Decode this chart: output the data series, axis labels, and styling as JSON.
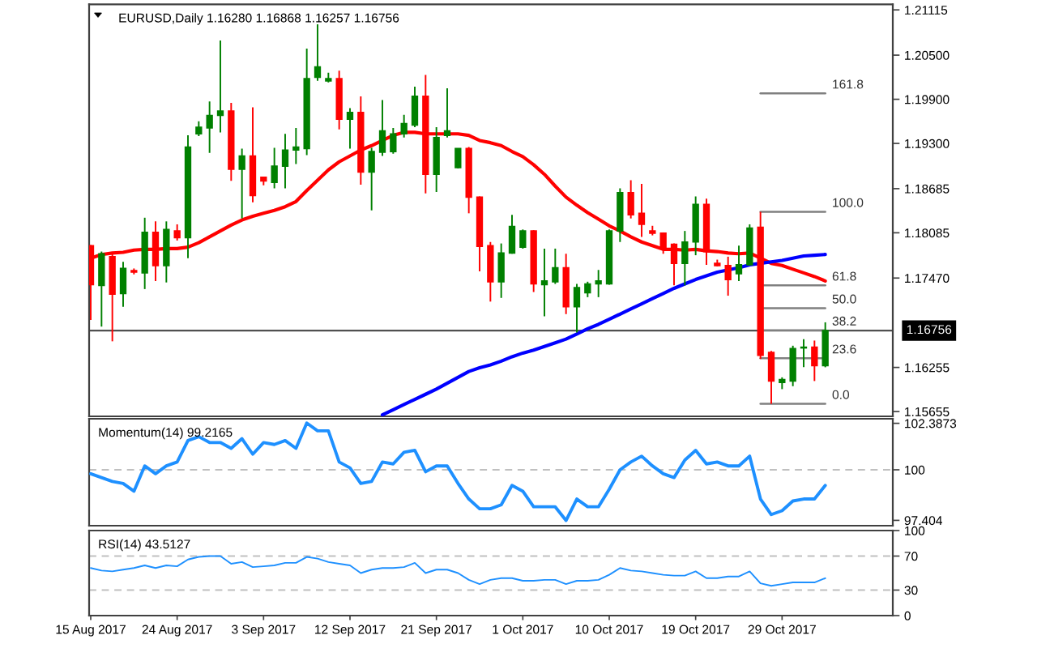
{
  "chart_data": [
    {
      "type": "candlestick",
      "title": "EURUSD,Daily 1.16280 1.16868 1.16257 1.16756",
      "categories": [
        null,
        null,
        null,
        null,
        null,
        null,
        null,
        null,
        null,
        null,
        null,
        null,
        null,
        null,
        null,
        null,
        null,
        null,
        null,
        null,
        null,
        null,
        null,
        null,
        null,
        null,
        null,
        null,
        null,
        null,
        null,
        null,
        null,
        null,
        null,
        null,
        null,
        null,
        null,
        null,
        null,
        null,
        null,
        null,
        null,
        null,
        null,
        null,
        null,
        null,
        null,
        null,
        null,
        null,
        null,
        null,
        null,
        null,
        null,
        null,
        null,
        null,
        null,
        null,
        null,
        null,
        null,
        null,
        null
      ],
      "ohlc": [
        [
          1.1791,
          1.1792,
          1.169,
          1.1738
        ],
        [
          1.1737,
          1.1783,
          1.1681,
          1.178
        ],
        [
          1.1776,
          1.178,
          1.1661,
          1.1725
        ],
        [
          1.1726,
          1.1769,
          1.1708,
          1.176
        ],
        [
          1.1757,
          1.176,
          1.1752,
          1.1755
        ],
        [
          1.1754,
          1.1829,
          1.1732,
          1.1809
        ],
        [
          1.1809,
          1.1824,
          1.1743,
          1.1764
        ],
        [
          1.1764,
          1.1824,
          1.1741,
          1.1813
        ],
        [
          1.1811,
          1.182,
          1.1798,
          1.1802
        ],
        [
          1.1802,
          1.1941,
          1.1774,
          1.1925
        ],
        [
          1.1943,
          1.196,
          1.194,
          1.1952
        ],
        [
          1.1951,
          1.1987,
          1.1917,
          1.1968
        ],
        [
          1.1968,
          1.207,
          1.1945,
          1.1974
        ],
        [
          1.1974,
          1.1985,
          1.1879,
          1.1895
        ],
        [
          1.1895,
          1.1923,
          1.1828,
          1.1913
        ],
        [
          1.1913,
          1.1979,
          1.185,
          1.1859
        ],
        [
          1.1884,
          1.1885,
          1.1873,
          1.1879
        ],
        [
          1.1877,
          1.1924,
          1.1869,
          1.1899
        ],
        [
          1.1899,
          1.1943,
          1.1869,
          1.1921
        ],
        [
          1.1921,
          1.1951,
          1.1902,
          1.1925
        ],
        [
          1.1923,
          1.2059,
          1.1914,
          1.2018
        ],
        [
          1.202,
          1.2092,
          1.2015,
          1.2034
        ],
        [
          1.2015,
          1.2026,
          1.2013,
          1.2018
        ],
        [
          1.2018,
          1.2029,
          1.1949,
          1.1963
        ],
        [
          1.1963,
          1.1978,
          1.1923,
          1.1972
        ],
        [
          1.1972,
          1.1994,
          1.1874,
          1.1891
        ],
        [
          1.1891,
          1.1924,
          1.1839,
          1.1919
        ],
        [
          1.1918,
          1.1989,
          1.1913,
          1.1947
        ],
        [
          1.1919,
          1.1951,
          1.1916,
          1.1943
        ],
        [
          1.1943,
          1.1969,
          1.1938,
          1.1957
        ],
        [
          1.1955,
          1.2007,
          1.1952,
          1.1994
        ],
        [
          1.1994,
          1.2023,
          1.1862,
          1.1888
        ],
        [
          1.1888,
          1.1952,
          1.1864,
          1.1938
        ],
        [
          1.1941,
          1.2005,
          1.1938,
          1.1947
        ],
        [
          1.1897,
          1.1923,
          1.1896,
          1.1923
        ],
        [
          1.1923,
          1.1925,
          1.1835,
          1.1857
        ],
        [
          1.1857,
          1.1858,
          1.1756,
          1.179
        ],
        [
          1.1791,
          1.1796,
          1.1715,
          1.1742
        ],
        [
          1.1742,
          1.1794,
          1.172,
          1.1781
        ],
        [
          1.1781,
          1.1833,
          1.178,
          1.1817
        ],
        [
          1.1789,
          1.1813,
          1.1787,
          1.1811
        ],
        [
          1.1811,
          1.1812,
          1.1728,
          1.1739
        ],
        [
          1.1738,
          1.1787,
          1.1695,
          1.1743
        ],
        [
          1.1742,
          1.1787,
          1.1739,
          1.1761
        ],
        [
          1.1761,
          1.178,
          1.1698,
          1.1708
        ],
        [
          1.1708,
          1.1739,
          1.1673,
          1.1734
        ],
        [
          1.1727,
          1.1742,
          1.1721,
          1.1739
        ],
        [
          1.1739,
          1.1758,
          1.1721,
          1.1743
        ],
        [
          1.1739,
          1.1813,
          1.1738,
          1.1811
        ],
        [
          1.1811,
          1.1869,
          1.1796,
          1.1863
        ],
        [
          1.1863,
          1.188,
          1.1828,
          1.1833
        ],
        [
          1.1835,
          1.1875,
          1.1803,
          1.182
        ],
        [
          1.1811,
          1.1818,
          1.1805,
          1.1808
        ],
        [
          1.1808,
          1.1809,
          1.178,
          1.1789
        ],
        [
          1.1793,
          1.1794,
          1.1737,
          1.1767
        ],
        [
          1.1767,
          1.1811,
          1.1737,
          1.1796
        ],
        [
          1.1796,
          1.1858,
          1.1778,
          1.1847
        ],
        [
          1.1847,
          1.1855,
          1.1765,
          1.1783
        ],
        [
          1.1767,
          1.1772,
          1.1763,
          1.1764
        ],
        [
          1.1764,
          1.1776,
          1.1723,
          1.1745
        ],
        [
          1.1753,
          1.1791,
          1.1743,
          1.1765
        ],
        [
          1.1765,
          1.182,
          1.1764,
          1.1815
        ],
        [
          1.1816,
          1.1837,
          1.1637,
          1.1642
        ],
        [
          1.1646,
          1.1648,
          1.1576,
          1.1607
        ],
        [
          1.1605,
          1.1612,
          1.1596,
          1.1609
        ],
        [
          1.1607,
          1.1655,
          1.16,
          1.1651
        ],
        [
          1.1652,
          1.1664,
          1.1626,
          1.1653
        ],
        [
          1.1653,
          1.1662,
          1.1607,
          1.1628
        ],
        [
          1.1628,
          1.16868,
          1.16257,
          1.16756
        ]
      ],
      "colors": [
        "#ff0000",
        "#008000",
        "#ff0000",
        "#008000",
        "#ff0000",
        "#008000",
        "#ff0000",
        "#008000",
        "#ff0000",
        "#008000",
        "#008000",
        "#008000",
        "#008000",
        "#ff0000",
        "#008000",
        "#ff0000",
        "#ff0000",
        "#008000",
        "#008000",
        "#008000",
        "#008000",
        "#008000",
        "#008000",
        "#ff0000",
        "#008000",
        "#ff0000",
        "#008000",
        "#008000",
        "#008000",
        "#008000",
        "#008000",
        "#ff0000",
        "#008000",
        "#008000",
        "#008000",
        "#ff0000",
        "#ff0000",
        "#ff0000",
        "#008000",
        "#008000",
        "#008000",
        "#ff0000",
        "#008000",
        "#008000",
        "#ff0000",
        "#008000",
        "#008000",
        "#008000",
        "#008000",
        "#008000",
        "#ff0000",
        "#ff0000",
        "#ff0000",
        "#ff0000",
        "#ff0000",
        "#008000",
        "#008000",
        "#ff0000",
        "#ff0000",
        "#ff0000",
        "#008000",
        "#008000",
        "#ff0000",
        "#ff0000",
        "#008000",
        "#008000",
        "#008000",
        "#ff0000",
        "#008000"
      ],
      "series": [
        {
          "type": "line",
          "color": "#ff0000",
          "values": [
            1.1774,
            1.1779,
            1.1781,
            1.1782,
            1.1785,
            1.1786,
            1.1786,
            1.1787,
            1.1787,
            1.1789,
            1.1795,
            1.1803,
            1.1811,
            1.1819,
            1.1826,
            1.1831,
            1.1835,
            1.1839,
            1.1844,
            1.1851,
            1.1866,
            1.188,
            1.1894,
            1.1905,
            1.1913,
            1.1921,
            1.1927,
            1.1934,
            1.1941,
            1.1945,
            1.1945,
            1.1943,
            1.1943,
            1.1943,
            1.1943,
            1.1941,
            1.1934,
            1.1931,
            1.1927,
            1.1919,
            1.1912,
            1.1901,
            1.1888,
            1.1872,
            1.1857,
            1.1846,
            1.1836,
            1.1827,
            1.1818,
            1.1811,
            1.1803,
            1.1796,
            1.1791,
            1.1786,
            1.1786,
            1.1785,
            1.1786,
            1.1784,
            1.1783,
            1.1781,
            1.178,
            1.1781,
            1.1774,
            1.1767,
            1.1764,
            1.1759,
            1.1754,
            1.1749,
            1.1743
          ]
        },
        {
          "type": "line",
          "color": "#0000ff",
          "values": [
            null,
            null,
            null,
            null,
            null,
            null,
            null,
            null,
            null,
            null,
            null,
            null,
            null,
            null,
            null,
            null,
            null,
            null,
            null,
            null,
            null,
            null,
            null,
            null,
            null,
            null,
            null,
            1.1561,
            1.1568,
            1.1575,
            1.1582,
            1.1589,
            1.1596,
            1.1604,
            1.1612,
            1.162,
            1.1625,
            1.1629,
            1.1634,
            1.164,
            1.1645,
            1.1649,
            1.1654,
            1.1659,
            1.1664,
            1.1671,
            1.1678,
            1.1684,
            1.1691,
            1.1698,
            1.1705,
            1.1712,
            1.1719,
            1.1726,
            1.1733,
            1.1739,
            1.1745,
            1.175,
            1.1755,
            1.1758,
            1.1761,
            1.1765,
            1.1767,
            1.1769,
            1.1771,
            1.1774,
            1.1777,
            1.1778,
            1.1779
          ]
        },
        {
          "type": "line",
          "name": "161.8",
          "color": "#808080",
          "values": [
            null,
            null,
            null,
            null,
            null,
            null,
            null,
            null,
            null,
            null,
            null,
            null,
            null,
            null,
            null,
            null,
            null,
            null,
            null,
            null,
            null,
            null,
            null,
            null,
            null,
            null,
            null,
            null,
            null,
            null,
            null,
            null,
            null,
            null,
            null,
            null,
            null,
            null,
            null,
            null,
            null,
            null,
            null,
            null,
            null,
            null,
            null,
            null,
            null,
            null,
            null,
            null,
            null,
            null,
            null,
            null,
            null,
            null,
            null,
            null,
            null,
            null,
            1.1998,
            1.1998,
            1.1998,
            1.1998,
            1.1998,
            1.1998,
            1.1998
          ]
        },
        {
          "type": "line",
          "name": "100.0",
          "color": "#808080",
          "values": [
            null,
            null,
            null,
            null,
            null,
            null,
            null,
            null,
            null,
            null,
            null,
            null,
            null,
            null,
            null,
            null,
            null,
            null,
            null,
            null,
            null,
            null,
            null,
            null,
            null,
            null,
            null,
            null,
            null,
            null,
            null,
            null,
            null,
            null,
            null,
            null,
            null,
            null,
            null,
            null,
            null,
            null,
            null,
            null,
            null,
            null,
            null,
            null,
            null,
            null,
            null,
            null,
            null,
            null,
            null,
            null,
            null,
            null,
            null,
            null,
            null,
            null,
            1.1837,
            1.1837,
            1.1837,
            1.1837,
            1.1837,
            1.1837,
            1.1837
          ]
        },
        {
          "type": "line",
          "name": "61.8",
          "color": "#808080",
          "values": [
            null,
            null,
            null,
            null,
            null,
            null,
            null,
            null,
            null,
            null,
            null,
            null,
            null,
            null,
            null,
            null,
            null,
            null,
            null,
            null,
            null,
            null,
            null,
            null,
            null,
            null,
            null,
            null,
            null,
            null,
            null,
            null,
            null,
            null,
            null,
            null,
            null,
            null,
            null,
            null,
            null,
            null,
            null,
            null,
            null,
            null,
            null,
            null,
            null,
            null,
            null,
            null,
            null,
            null,
            null,
            null,
            null,
            null,
            null,
            null,
            null,
            null,
            1.1737,
            1.1737,
            1.1737,
            1.1737,
            1.1737,
            1.1737,
            1.1737
          ]
        },
        {
          "type": "line",
          "name": "50.0",
          "color": "#808080",
          "values": [
            null,
            null,
            null,
            null,
            null,
            null,
            null,
            null,
            null,
            null,
            null,
            null,
            null,
            null,
            null,
            null,
            null,
            null,
            null,
            null,
            null,
            null,
            null,
            null,
            null,
            null,
            null,
            null,
            null,
            null,
            null,
            null,
            null,
            null,
            null,
            null,
            null,
            null,
            null,
            null,
            null,
            null,
            null,
            null,
            null,
            null,
            null,
            null,
            null,
            null,
            null,
            null,
            null,
            null,
            null,
            null,
            null,
            null,
            null,
            null,
            null,
            null,
            1.1706,
            1.1706,
            1.1706,
            1.1706,
            1.1706,
            1.1706,
            1.1706
          ]
        },
        {
          "type": "line",
          "name": "38.2",
          "color": "#808080",
          "values": [
            null,
            null,
            null,
            null,
            null,
            null,
            null,
            null,
            null,
            null,
            null,
            null,
            null,
            null,
            null,
            null,
            null,
            null,
            null,
            null,
            null,
            null,
            null,
            null,
            null,
            null,
            null,
            null,
            null,
            null,
            null,
            null,
            null,
            null,
            null,
            null,
            null,
            null,
            null,
            null,
            null,
            null,
            null,
            null,
            null,
            null,
            null,
            null,
            null,
            null,
            null,
            null,
            null,
            null,
            null,
            null,
            null,
            null,
            null,
            null,
            null,
            null,
            1.1676,
            1.1676,
            1.1676,
            1.1676,
            1.1676,
            1.1676,
            1.1676
          ]
        },
        {
          "type": "line",
          "name": "23.6",
          "color": "#808080",
          "values": [
            null,
            null,
            null,
            null,
            null,
            null,
            null,
            null,
            null,
            null,
            null,
            null,
            null,
            null,
            null,
            null,
            null,
            null,
            null,
            null,
            null,
            null,
            null,
            null,
            null,
            null,
            null,
            null,
            null,
            null,
            null,
            null,
            null,
            null,
            null,
            null,
            null,
            null,
            null,
            null,
            null,
            null,
            null,
            null,
            null,
            null,
            null,
            null,
            null,
            null,
            null,
            null,
            null,
            null,
            null,
            null,
            null,
            null,
            null,
            null,
            null,
            null,
            1.1638,
            1.1638,
            1.1638,
            1.1638,
            1.1638,
            1.1638,
            1.1638
          ]
        },
        {
          "type": "line",
          "name": "0.0",
          "color": "#808080",
          "values": [
            null,
            null,
            null,
            null,
            null,
            null,
            null,
            null,
            null,
            null,
            null,
            null,
            null,
            null,
            null,
            null,
            null,
            null,
            null,
            null,
            null,
            null,
            null,
            null,
            null,
            null,
            null,
            null,
            null,
            null,
            null,
            null,
            null,
            null,
            null,
            null,
            null,
            null,
            null,
            null,
            null,
            null,
            null,
            null,
            null,
            null,
            null,
            null,
            null,
            null,
            null,
            null,
            null,
            null,
            null,
            null,
            null,
            null,
            null,
            null,
            null,
            null,
            1.1576,
            1.1576,
            1.1576,
            1.1576,
            1.1576,
            1.1576,
            1.1576
          ]
        }
      ],
      "ylim": [
        1.1559,
        1.2119
      ],
      "yticks": [
        1.21115,
        {
          "value": 1.205,
          "label": "1.20500"
        },
        {
          "value": 1.199,
          "label": "1.19900"
        },
        {
          "value": 1.193,
          "label": "1.19300"
        },
        1.18685,
        1.18085,
        {
          "value": 1.1747,
          "label": "1.17470"
        },
        1.16255,
        1.15655
      ],
      "ref_lines": [
        {
          "axis": "y",
          "value": 1.16756,
          "label": "1.16756",
          "color": "#505050"
        }
      ],
      "tick_labels": "y"
    },
    {
      "type": "line",
      "title": "Momentum(14) 99.2165",
      "categories": [
        null,
        null,
        null,
        null,
        null,
        null,
        null,
        null,
        null,
        null,
        null,
        null,
        null,
        null,
        null,
        null,
        null,
        null,
        null,
        null,
        null,
        null,
        null,
        null,
        null,
        null,
        null,
        null,
        null,
        null,
        null,
        null,
        null,
        null,
        null,
        null,
        null,
        null,
        null,
        null,
        null,
        null,
        null,
        null,
        null,
        null,
        null,
        null,
        null,
        null,
        null,
        null,
        null,
        null,
        null,
        null,
        null,
        null,
        null,
        null,
        null,
        null,
        null,
        null,
        null,
        null,
        null,
        null,
        null
      ],
      "series": [
        {
          "color": "#1e90ff",
          "values": [
            99.8,
            99.6,
            99.4,
            99.3,
            98.9,
            100.2,
            99.8,
            100.2,
            100.4,
            101.5,
            101.7,
            101.4,
            101.4,
            101.1,
            101.6,
            100.8,
            101.4,
            101.3,
            101.5,
            101.1,
            102.4,
            102.0,
            102.0,
            100.4,
            100.1,
            99.3,
            99.4,
            100.4,
            100.3,
            100.9,
            101.0,
            99.9,
            100.2,
            100.2,
            99.3,
            98.5,
            98.0,
            98.0,
            98.2,
            99.2,
            98.9,
            98.1,
            98.1,
            98.1,
            97.4,
            98.5,
            98.1,
            98.1,
            99.0,
            100.0,
            100.4,
            100.7,
            100.2,
            99.8,
            99.6,
            100.5,
            101.0,
            100.3,
            100.4,
            100.2,
            100.2,
            100.7,
            98.5,
            97.7,
            97.9,
            98.4,
            98.5,
            98.5,
            99.2
          ]
        }
      ],
      "ylim": [
        97.13,
        102.62
      ],
      "yticks": [
        97.404,
        100,
        102.3873
      ],
      "ref_lines": [
        {
          "axis": "y",
          "value": 100,
          "color": "#c0c0c0",
          "line_style": "dashed"
        }
      ],
      "tick_labels": "y"
    },
    {
      "type": "line",
      "title": "RSI(14) 43.5127",
      "categories": [
        "15 Aug 2017",
        null,
        null,
        null,
        null,
        null,
        null,
        null,
        "24 Aug 2017",
        null,
        null,
        null,
        null,
        null,
        null,
        null,
        "3 Sep 2017",
        null,
        null,
        null,
        null,
        null,
        null,
        null,
        "12 Sep 2017",
        null,
        null,
        null,
        null,
        null,
        null,
        null,
        "21 Sep 2017",
        null,
        null,
        null,
        null,
        null,
        null,
        null,
        "1 Oct 2017",
        null,
        null,
        null,
        null,
        null,
        null,
        null,
        "10 Oct 2017",
        null,
        null,
        null,
        null,
        null,
        null,
        null,
        "19 Oct 2017",
        null,
        null,
        null,
        null,
        null,
        null,
        null,
        "29 Oct 2017",
        null,
        null,
        null,
        null
      ],
      "series": [
        {
          "color": "#1e90ff",
          "values": [
            56,
            53,
            52,
            54,
            56,
            59,
            56,
            59,
            58,
            66,
            69,
            70,
            70,
            61,
            63,
            57,
            58,
            59,
            62,
            62,
            69,
            67,
            63,
            61,
            59,
            50,
            54,
            56,
            56,
            57,
            62,
            50,
            54,
            54,
            50,
            42,
            37,
            42,
            44,
            44,
            41,
            41,
            42,
            42,
            37,
            41,
            41,
            42,
            48,
            56,
            53,
            52,
            50,
            48,
            47,
            47,
            52,
            44,
            44,
            46,
            46,
            52,
            38,
            35,
            37,
            39,
            39,
            39,
            44
          ]
        }
      ],
      "ylim": [
        0,
        100
      ],
      "yticks": [
        0,
        30,
        70,
        100
      ],
      "ref_lines": [
        {
          "axis": "y",
          "value": 70,
          "color": "#c0c0c0",
          "line_style": "dashed"
        },
        {
          "axis": "y",
          "value": 30,
          "color": "#c0c0c0",
          "line_style": "dashed"
        }
      ]
    }
  ]
}
